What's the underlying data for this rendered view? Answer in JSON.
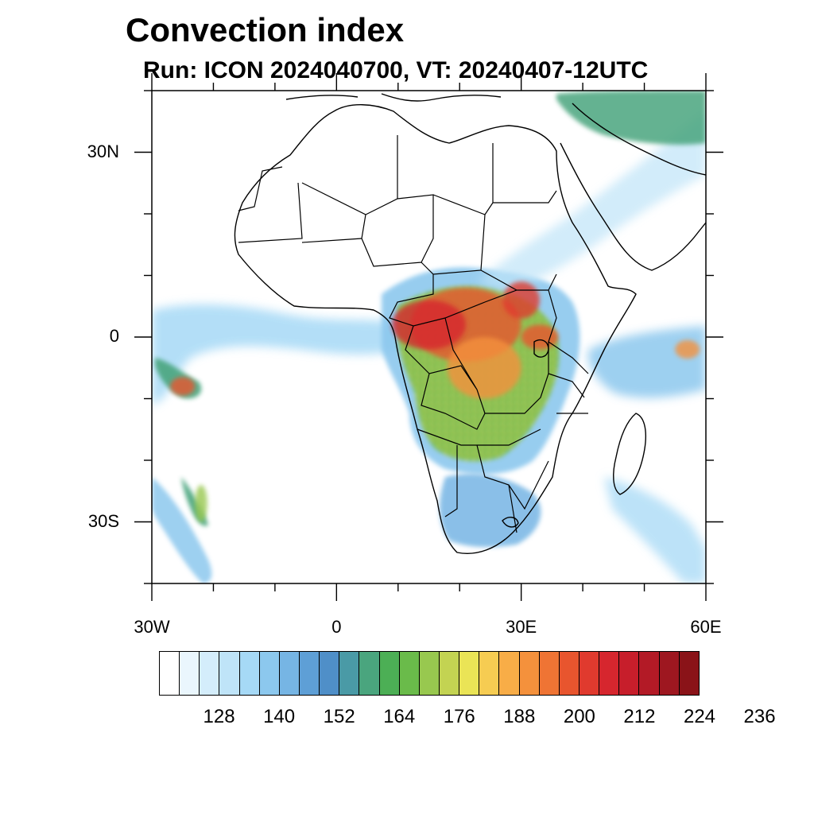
{
  "title": "Convection index",
  "subtitle": "Run: ICON 2024040700,  VT: 20240407-12UTC",
  "axes": {
    "lon_range": [
      -30,
      60
    ],
    "lat_range": [
      -40,
      40
    ],
    "x_ticks": [
      {
        "lon": -30,
        "label": "30W"
      },
      {
        "lon": 0,
        "label": "0"
      },
      {
        "lon": 30,
        "label": "30E"
      },
      {
        "lon": 60,
        "label": "60E"
      }
    ],
    "y_ticks": [
      {
        "lat": 30,
        "label": "30N"
      },
      {
        "lat": 0,
        "label": "0"
      },
      {
        "lat": -30,
        "label": "30S"
      }
    ],
    "minor_lon_step": 10,
    "minor_lat_step": 10
  },
  "colorbar": {
    "colors": [
      "#ffffff",
      "#eaf6fd",
      "#d4edfb",
      "#bfe4f8",
      "#a6d9f6",
      "#8cc8ee",
      "#76b5e4",
      "#5e9fd6",
      "#4f8fc8",
      "#4a9aa6",
      "#4aa57e",
      "#4caf55",
      "#6abb4a",
      "#98c84f",
      "#c3d352",
      "#eae456",
      "#f6cc52",
      "#f8ad47",
      "#f4913c",
      "#ef7434",
      "#e8552e",
      "#e03a2e",
      "#d6262e",
      "#c71e2b",
      "#b31a26",
      "#9e1720",
      "#8a1318"
    ],
    "labels": [
      "128",
      "140",
      "152",
      "164",
      "176",
      "188",
      "200",
      "212",
      "224",
      "236"
    ]
  },
  "map": {
    "field_blobs": [
      {
        "lon": 21,
        "lat": 2,
        "rx": 9,
        "ry": 6,
        "color": "#e8552e"
      },
      {
        "lon": 24,
        "lat": -5,
        "rx": 6,
        "ry": 5,
        "color": "#f4913c"
      },
      {
        "lon": 15,
        "lat": 2,
        "rx": 6,
        "ry": 4,
        "color": "#d6262e"
      },
      {
        "lon": 30,
        "lat": 6,
        "rx": 3,
        "ry": 3,
        "color": "#e03a2e"
      },
      {
        "lon": 33,
        "lat": 0,
        "rx": 3,
        "ry": 2,
        "color": "#e8552e"
      },
      {
        "lon": -25,
        "lat": -8,
        "rx": 2,
        "ry": 1.5,
        "color": "#e8552e"
      },
      {
        "lon": 57,
        "lat": -2,
        "rx": 2,
        "ry": 1.5,
        "color": "#f4913c"
      },
      {
        "lon": -22,
        "lat": -27,
        "rx": 1,
        "ry": 3,
        "color": "#98c84f"
      }
    ]
  }
}
